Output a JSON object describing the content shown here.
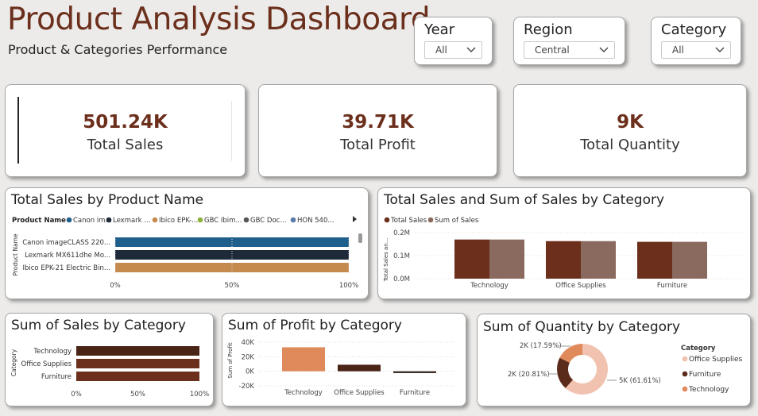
{
  "header": {
    "title": "Product Analysis Dashboard",
    "subtitle": "Product & Categories Performance"
  },
  "slicers": [
    {
      "label": "Year",
      "value": "All"
    },
    {
      "label": "Region",
      "value": "Central"
    },
    {
      "label": "Category",
      "value": "All"
    }
  ],
  "kpis": [
    {
      "value": "501.24K",
      "label": "Total Sales"
    },
    {
      "value": "39.71K",
      "label": "Total Profit"
    },
    {
      "value": "9K",
      "label": "Total Quantity"
    }
  ],
  "colors": {
    "accent": "#6b2f1c",
    "blue": "#1f5f8b",
    "navy": "#1e2a38",
    "tan": "#c58a4e",
    "dark_brown": "#6b2f1c",
    "mauve": "#8a6a5e",
    "salmon": "#e08a5c",
    "pink": "#f2c2b0"
  },
  "chart_data": [
    {
      "type": "bar",
      "title": "Total Sales by Product Name",
      "legend_title": "Product Name",
      "legend": [
        "Canon im...",
        "Lexmark ...",
        "Ibico EPK-...",
        "GBC Ibim...",
        "GBC Doc...",
        "HON 540..."
      ],
      "legend_colors": [
        "#1f5f8b",
        "#1e2a38",
        "#c58a4e",
        "#8fb23c",
        "#555555",
        "#5b7aa8"
      ],
      "categories": [
        "Canon imageCLASS 220...",
        "Lexmark MX611dhe Mo...",
        "Ibico EPK-21 Electric Bin..."
      ],
      "values": [
        100,
        100,
        100
      ],
      "ylabel": "Product Name",
      "xticks": [
        "0%",
        "50%",
        "100%"
      ],
      "stacked": "100%"
    },
    {
      "type": "bar",
      "title": "Total Sales and Sum of Sales by Category",
      "categories": [
        "Technology",
        "Office Supplies",
        "Furniture"
      ],
      "series": [
        {
          "name": "Total Sales",
          "values": [
            170000,
            163000,
            160000
          ]
        },
        {
          "name": "Sum of Sales",
          "values": [
            170000,
            163000,
            160000
          ]
        }
      ],
      "ylabel": "Total Sales an...",
      "yticks": [
        "0.0M",
        "0.1M",
        "0.2M"
      ],
      "ylim": [
        0,
        200000
      ]
    },
    {
      "type": "bar",
      "title": "Sum of Sales by Category",
      "categories": [
        "Technology",
        "Office Supplies",
        "Furniture"
      ],
      "values": [
        100,
        100,
        100
      ],
      "ylabel": "Category",
      "xticks": [
        "0%",
        "50%",
        "100%"
      ],
      "stacked": "100%"
    },
    {
      "type": "bar",
      "title": "Sum of Profit by Category",
      "categories": [
        "Technology",
        "Office Supplies",
        "Furniture"
      ],
      "values": [
        33000,
        9000,
        -2500
      ],
      "ylabel": "Sum of Profit",
      "yticks": [
        "-20K",
        "0K",
        "20K",
        "40K"
      ],
      "ylim": [
        -20000,
        40000
      ]
    },
    {
      "type": "pie",
      "title": "Sum of Quantity by Category",
      "legend_title": "Category",
      "slices": [
        {
          "label": "Office Supplies",
          "data_label": "5K (61.61%)",
          "percent": 61.61
        },
        {
          "label": "Furniture",
          "data_label": "2K (20.81%)",
          "percent": 20.81
        },
        {
          "label": "Technology",
          "data_label": "2K (17.59%)",
          "percent": 17.59
        }
      ]
    }
  ]
}
